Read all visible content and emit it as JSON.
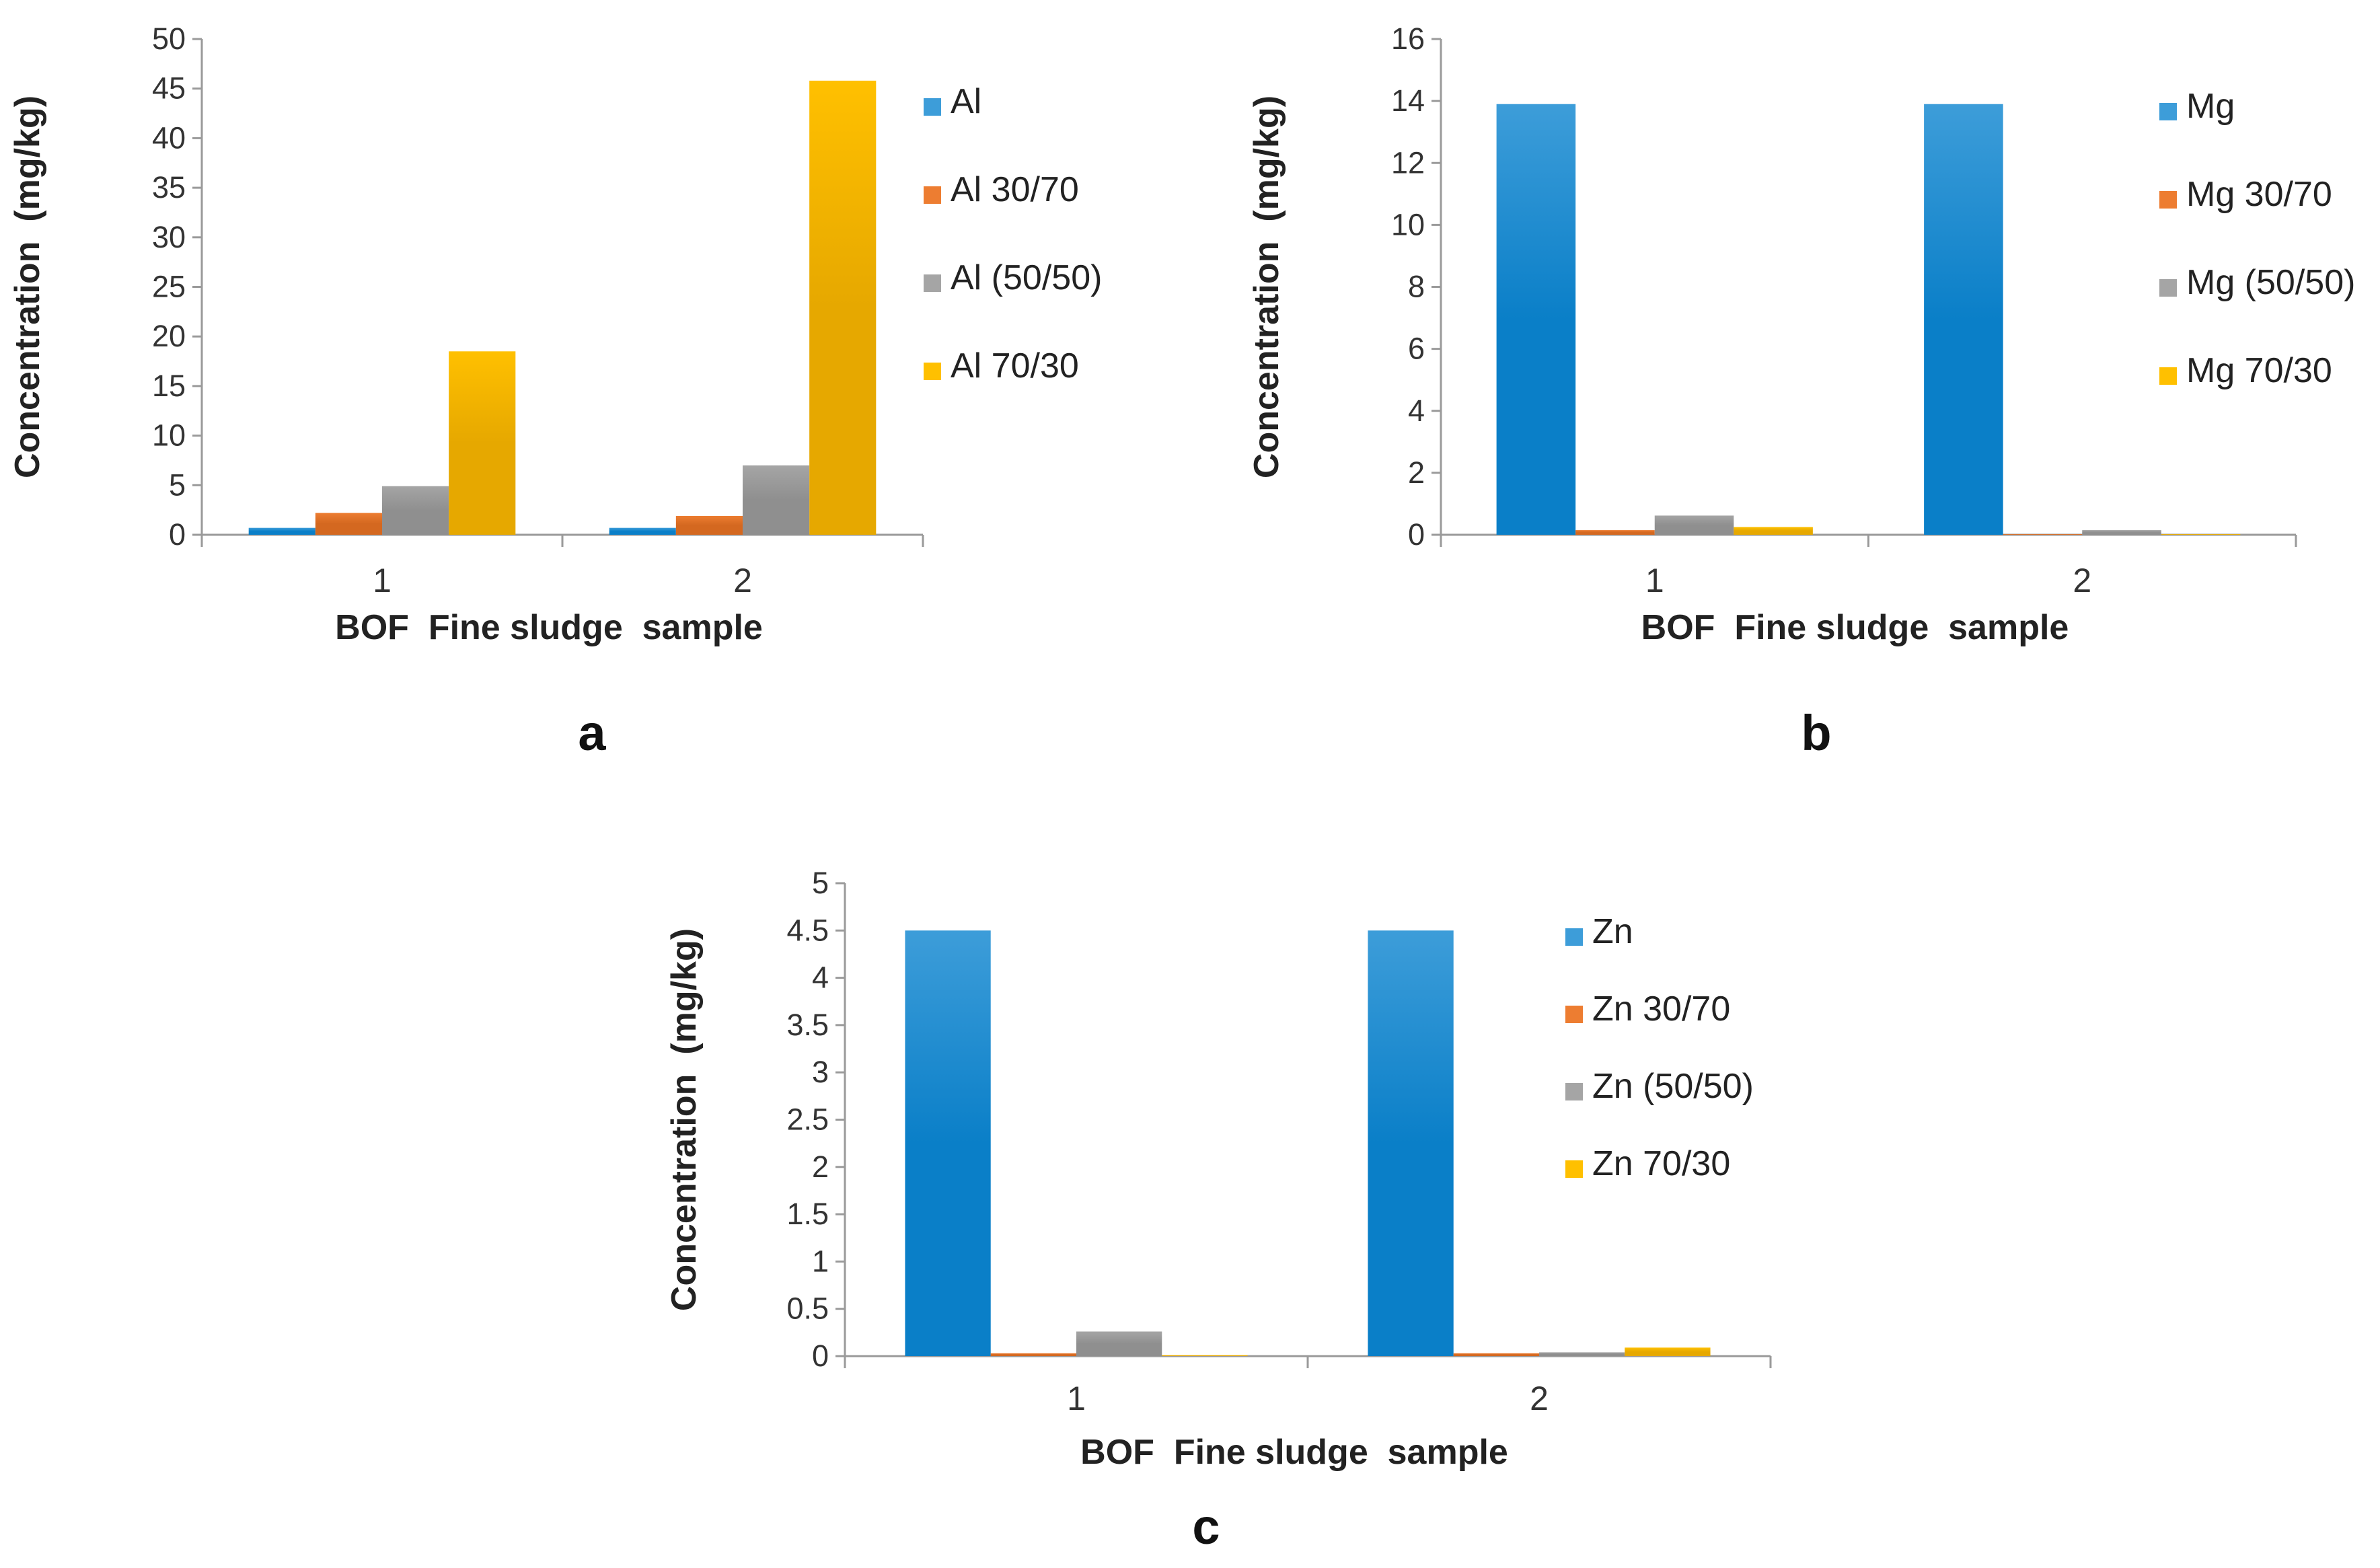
{
  "colors": {
    "s0": "#3d9dd9",
    "s1": "#ed7d31",
    "s2": "#a5a5a5",
    "s3": "#ffc000"
  },
  "chart_data": [
    {
      "type": "bar",
      "panel": "a",
      "categories": [
        "1",
        "2"
      ],
      "xlabel": "BOF  Fine sludge  sample",
      "ylabel": "Concentration  (mg/kg)",
      "ylim": [
        0,
        50
      ],
      "yticks": [
        "0",
        "5",
        "10",
        "15",
        "20",
        "25",
        "30",
        "35",
        "40",
        "45",
        "50"
      ],
      "series": [
        {
          "name": "Al",
          "values": [
            0.7,
            0.7
          ]
        },
        {
          "name": "Al 30/70",
          "values": [
            2.2,
            1.9
          ]
        },
        {
          "name": "Al (50/50)",
          "values": [
            4.9,
            7.0
          ]
        },
        {
          "name": "Al 70/30",
          "values": [
            18.5,
            45.8
          ]
        }
      ],
      "legend_position": "right"
    },
    {
      "type": "bar",
      "panel": "b",
      "categories": [
        "1",
        "2"
      ],
      "xlabel": "BOF  Fine sludge  sample",
      "ylabel": "Concentration  (mg/kg)",
      "ylim": [
        0,
        16
      ],
      "yticks": [
        "0",
        "2",
        "4",
        "6",
        "8",
        "10",
        "12",
        "14",
        "16"
      ],
      "series": [
        {
          "name": "Mg",
          "values": [
            13.9,
            13.9
          ]
        },
        {
          "name": "Mg 30/70",
          "values": [
            0.15,
            0.02
          ]
        },
        {
          "name": "Mg (50/50)",
          "values": [
            0.62,
            0.15
          ]
        },
        {
          "name": "Mg 70/30",
          "values": [
            0.25,
            0.02
          ]
        }
      ],
      "legend_position": "right"
    },
    {
      "type": "bar",
      "panel": "c",
      "categories": [
        "1",
        "2"
      ],
      "xlabel": "BOF  Fine sludge  sample",
      "ylabel": "Concentration  (mg/kg)",
      "ylim": [
        0,
        5
      ],
      "yticks": [
        "0",
        "0.5",
        "1",
        "1.5",
        "2",
        "2.5",
        "3",
        "3.5",
        "4",
        "4.5",
        "5"
      ],
      "series": [
        {
          "name": "Zn",
          "values": [
            4.5,
            4.5
          ]
        },
        {
          "name": "Zn 30/70",
          "values": [
            0.03,
            0.03
          ]
        },
        {
          "name": "Zn (50/50)",
          "values": [
            0.26,
            0.04
          ]
        },
        {
          "name": "Zn 70/30",
          "values": [
            0.01,
            0.09
          ]
        }
      ],
      "legend_position": "right"
    }
  ]
}
